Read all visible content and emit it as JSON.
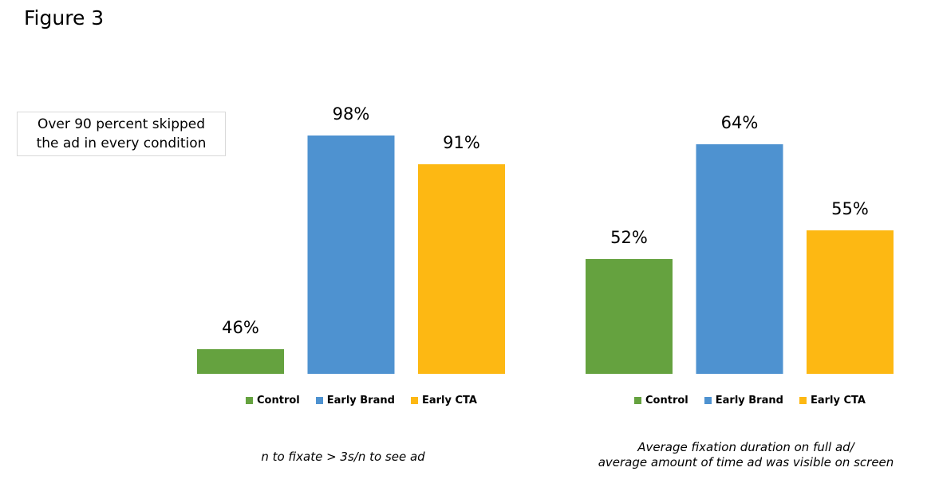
{
  "figure_title": "Figure 3",
  "callout": {
    "line1": "Over 90 percent skipped",
    "line2": "the ad in every condition"
  },
  "colors": {
    "Control": "#65A23F",
    "Early Brand": "#4E92D0",
    "Early CTA": "#FDB813"
  },
  "chart_data": [
    {
      "type": "bar",
      "categories": [
        "Control",
        "Early Brand",
        "Early CTA"
      ],
      "values": [
        46,
        98,
        91
      ],
      "data_labels": [
        "46%",
        "98%",
        "91%"
      ],
      "legend": [
        "Control",
        "Early Brand",
        "Early CTA"
      ],
      "legend_position": "bottom",
      "caption_lines": [
        "n to fixate > 3s/n to see ad"
      ],
      "ylim": [
        40,
        100
      ],
      "grid": false
    },
    {
      "type": "bar",
      "categories": [
        "Control",
        "Early Brand",
        "Early CTA"
      ],
      "values": [
        52,
        64,
        55
      ],
      "data_labels": [
        "52%",
        "64%",
        "55%"
      ],
      "legend": [
        "Control",
        "Early Brand",
        "Early CTA"
      ],
      "legend_position": "bottom",
      "caption_lines": [
        "Average fixation duration on full ad/",
        "average amount of time ad was visible on screen"
      ],
      "ylim": [
        40,
        70
      ],
      "grid": false
    }
  ]
}
